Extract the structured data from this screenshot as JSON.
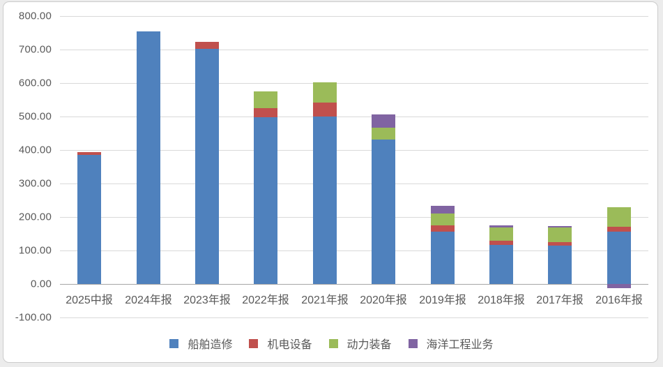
{
  "chart_data": {
    "type": "bar",
    "stacked": true,
    "title": "",
    "xlabel": "",
    "ylabel": "",
    "categories": [
      "2025中报",
      "2024年报",
      "2023年报",
      "2022年报",
      "2021年报",
      "2020年报",
      "2019年报",
      "2018年报",
      "2017年报",
      "2016年报"
    ],
    "series": [
      {
        "name": "船舶造修",
        "color": "#4F81BD",
        "values": [
          385,
          754,
          703,
          498,
          500,
          431,
          157,
          117,
          114,
          157
        ]
      },
      {
        "name": "机电设备",
        "color": "#C0504D",
        "values": [
          8,
          0,
          20,
          27,
          42,
          0,
          17,
          12,
          10,
          14
        ]
      },
      {
        "name": "动力装备",
        "color": "#9BBB59",
        "values": [
          0,
          0,
          0,
          50,
          60,
          36,
          36,
          40,
          45,
          59
        ]
      },
      {
        "name": "海洋工程业务",
        "color": "#8064A2",
        "values": [
          0,
          0,
          0,
          0,
          0,
          40,
          23,
          6,
          3,
          -13
        ]
      }
    ],
    "ylim": [
      -100,
      800
    ],
    "ytick_step": 100,
    "ytick_labels": [
      "800.00",
      "700.00",
      "600.00",
      "500.00",
      "400.00",
      "300.00",
      "200.00",
      "100.00",
      "0.00",
      "-100.00"
    ],
    "grid": true,
    "legend_position": "bottom"
  },
  "colors": {
    "gridline": "#d9d9d9",
    "zero_axis": "#a6a6a6",
    "axis_text": "#595959",
    "frame_border": "#cccccc",
    "chart_background": "#ffffff",
    "page_background": "#ececec"
  }
}
